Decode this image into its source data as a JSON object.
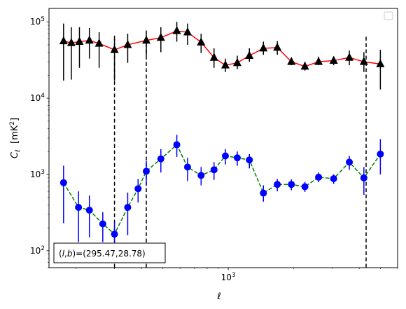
{
  "chart_data": {
    "type": "scatter",
    "xscale": "log",
    "yscale": "log",
    "xlim": [
      150,
      6000
    ],
    "ylim": [
      60,
      150000
    ],
    "xlabel": "ℓ",
    "ylabel": "C_ℓ  [mK²]",
    "ylabel_parts": {
      "main": "C",
      "sub": "ℓ",
      "unit_pre": "[mK",
      "unit_sup": "2",
      "unit_post": "]"
    },
    "x_ticks": [
      {
        "value": 1000,
        "label": "10",
        "exp": "3"
      }
    ],
    "y_ticks": [
      {
        "value": 100,
        "label": "10",
        "exp": "2"
      },
      {
        "value": 1000,
        "label": "10",
        "exp": "3"
      },
      {
        "value": 10000,
        "label": "10",
        "exp": "4"
      },
      {
        "value": 100000,
        "label": "10",
        "exp": "5"
      }
    ],
    "vlines": [
      {
        "x": 300,
        "ymin": 60,
        "ymax": 60000
      },
      {
        "x": 420,
        "ymin": 60,
        "ymax": 60000
      },
      {
        "x": 4300,
        "ymin": 60,
        "ymax": 68000
      }
    ],
    "annotation": {
      "text": "(l,b)=(295.47,28.78)",
      "prefix": "(",
      "l": "l",
      "comma": ",",
      "b": "b",
      "suffix": ")=(295.47,28.78)"
    },
    "legend": {
      "position": "upper right",
      "entries": []
    },
    "series": [
      {
        "marker": "triangle",
        "marker_color": "#000000",
        "line_color": "#ff0000",
        "linestyle": "solid",
        "errorbar_color": "#000000",
        "points": [
          {
            "x": 175,
            "y": 56000,
            "lo": 17000,
            "hi": 95000
          },
          {
            "x": 190,
            "y": 53000,
            "lo": 17500,
            "hi": 85000
          },
          {
            "x": 207,
            "y": 55000,
            "lo": 25000,
            "hi": 85000
          },
          {
            "x": 230,
            "y": 57000,
            "lo": 33000,
            "hi": 83000
          },
          {
            "x": 255,
            "y": 52000,
            "lo": 25000,
            "hi": 73000
          },
          {
            "x": 300,
            "y": 43000,
            "lo": 17000,
            "hi": 66000
          },
          {
            "x": 345,
            "y": 50000,
            "lo": 29000,
            "hi": 70000
          },
          {
            "x": 420,
            "y": 57000,
            "lo": 36000,
            "hi": 77000
          },
          {
            "x": 490,
            "y": 62000,
            "lo": 40000,
            "hi": 85000
          },
          {
            "x": 580,
            "y": 76000,
            "lo": 55000,
            "hi": 100000
          },
          {
            "x": 650,
            "y": 73000,
            "lo": 50000,
            "hi": 95000
          },
          {
            "x": 750,
            "y": 54000,
            "lo": 39000,
            "hi": 70000
          },
          {
            "x": 860,
            "y": 34000,
            "lo": 25000,
            "hi": 45000
          },
          {
            "x": 970,
            "y": 27000,
            "lo": 22000,
            "hi": 33000
          },
          {
            "x": 1100,
            "y": 29000,
            "lo": 24000,
            "hi": 36000
          },
          {
            "x": 1250,
            "y": 36000,
            "lo": 30000,
            "hi": 45000
          },
          {
            "x": 1450,
            "y": 45000,
            "lo": 37000,
            "hi": 55000
          },
          {
            "x": 1680,
            "y": 46000,
            "lo": 37000,
            "hi": 56000
          },
          {
            "x": 1950,
            "y": 30000,
            "lo": 27000,
            "hi": 34000
          },
          {
            "x": 2250,
            "y": 26000,
            "lo": 23000,
            "hi": 30000
          },
          {
            "x": 2600,
            "y": 30000,
            "lo": 27000,
            "hi": 35000
          },
          {
            "x": 3050,
            "y": 31000,
            "lo": 27000,
            "hi": 35000
          },
          {
            "x": 3600,
            "y": 34000,
            "lo": 27000,
            "hi": 42000
          },
          {
            "x": 4200,
            "y": 30000,
            "lo": 22000,
            "hi": 40000
          },
          {
            "x": 5000,
            "y": 28000,
            "lo": 13000,
            "hi": 43000
          }
        ]
      },
      {
        "marker": "circle",
        "marker_color": "#0000ff",
        "line_color": "#008000",
        "linestyle": "dashed",
        "errorbar_color": "#0000ff",
        "points": [
          {
            "x": 175,
            "y": 780,
            "lo": 230,
            "hi": 1300
          },
          {
            "x": 205,
            "y": 370,
            "lo": 130,
            "hi": 600
          },
          {
            "x": 230,
            "y": 340,
            "lo": 150,
            "hi": 530
          },
          {
            "x": 265,
            "y": 225,
            "lo": 130,
            "hi": 320
          },
          {
            "x": 300,
            "y": 165,
            "lo": 90,
            "hi": 240
          },
          {
            "x": 345,
            "y": 370,
            "lo": 160,
            "hi": 580
          },
          {
            "x": 385,
            "y": 650,
            "lo": 430,
            "hi": 870
          },
          {
            "x": 420,
            "y": 1100,
            "lo": 730,
            "hi": 1500
          },
          {
            "x": 490,
            "y": 1600,
            "lo": 1060,
            "hi": 2150
          },
          {
            "x": 580,
            "y": 2450,
            "lo": 1700,
            "hi": 3300
          },
          {
            "x": 650,
            "y": 1250,
            "lo": 820,
            "hi": 1650
          },
          {
            "x": 750,
            "y": 970,
            "lo": 720,
            "hi": 1250
          },
          {
            "x": 860,
            "y": 1150,
            "lo": 850,
            "hi": 1450
          },
          {
            "x": 970,
            "y": 1750,
            "lo": 1350,
            "hi": 2150
          },
          {
            "x": 1100,
            "y": 1650,
            "lo": 1300,
            "hi": 2000
          },
          {
            "x": 1250,
            "y": 1550,
            "lo": 1200,
            "hi": 1850
          },
          {
            "x": 1450,
            "y": 570,
            "lo": 440,
            "hi": 720
          },
          {
            "x": 1680,
            "y": 740,
            "lo": 600,
            "hi": 870
          },
          {
            "x": 1950,
            "y": 740,
            "lo": 620,
            "hi": 860
          },
          {
            "x": 2250,
            "y": 690,
            "lo": 590,
            "hi": 800
          },
          {
            "x": 2600,
            "y": 920,
            "lo": 790,
            "hi": 1060
          },
          {
            "x": 3050,
            "y": 880,
            "lo": 750,
            "hi": 1000
          },
          {
            "x": 3600,
            "y": 1450,
            "lo": 1150,
            "hi": 1750
          },
          {
            "x": 4200,
            "y": 900,
            "lo": 540,
            "hi": 1250
          },
          {
            "x": 5000,
            "y": 1850,
            "lo": 1000,
            "hi": 2900
          }
        ]
      }
    ]
  }
}
